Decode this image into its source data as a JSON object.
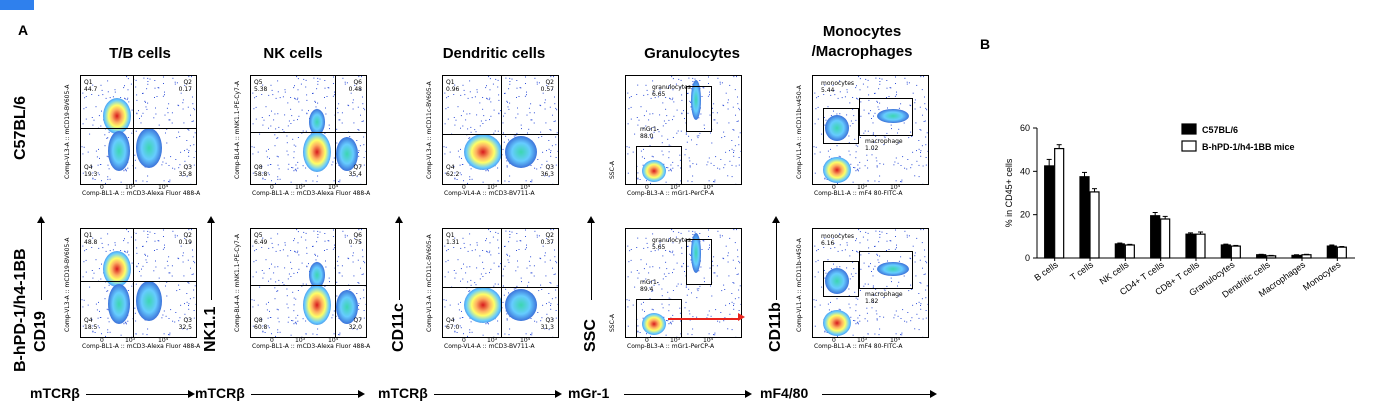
{
  "panels": {
    "a": "A",
    "b": "B"
  },
  "columns": [
    "T/B cells",
    "NK cells",
    "Dendritic cells",
    "Granulocytes",
    "Monocytes\n/Macrophages"
  ],
  "rows": [
    "C57BL/6",
    "B-hPD-1/h4-1BB"
  ],
  "y_markers": [
    "CD19",
    "NK1.1",
    "CD11c",
    "SSC",
    "CD11b"
  ],
  "x_markers": [
    "mTCRβ",
    "mTCRβ",
    "mTCRβ",
    "mGr-1",
    "mF4/80"
  ],
  "plots": [
    {
      "xaxis": "Comp-BL1-A :: mCD3-Alexa Fluor   488-A",
      "yaxis": "Comp-VL3-A :: mCD19-BV605-A",
      "rows": [
        {
          "quads": [
            "Q1\n44.7",
            "Q2\n0.17",
            "Q4\n19.3",
            "Q3\n35.8"
          ]
        },
        {
          "quads": [
            "Q1\n48.8",
            "Q2\n0.19",
            "Q4\n18.5",
            "Q3\n32.5"
          ]
        }
      ]
    },
    {
      "xaxis": "Comp-BL1-A :: mCD3-Alexa Fluor   488-A",
      "yaxis": "Comp-BL4-A :: mNK1.1-PE-Cy7-A",
      "rows": [
        {
          "quads": [
            "Q5\n5.38",
            "Q6\n0.48",
            "Q8\n58.8",
            "Q7\n35.4"
          ]
        },
        {
          "quads": [
            "Q5\n6.49",
            "Q6\n0.75",
            "Q8\n60.8",
            "Q7\n32.0"
          ]
        }
      ]
    },
    {
      "xaxis": "Comp-VL4-A :: mCD3-BV711-A",
      "yaxis": "Comp-VL3-A :: mCD11c-BV605-A",
      "rows": [
        {
          "quads": [
            "Q1\n0.96",
            "Q2\n0.57",
            "Q4\n62.2",
            "Q3\n36.3"
          ]
        },
        {
          "quads": [
            "Q1\n1.31",
            "Q2\n0.37",
            "Q4\n67.0",
            "Q3\n31.3"
          ]
        }
      ]
    },
    {
      "xaxis": "Comp-BL3-A :: mGr1-PerCP-A",
      "yaxis": "SSC-A",
      "rows": [
        {
          "quads": [
            "granulocytes\n6.65",
            "mGr1-\n88.0"
          ]
        },
        {
          "quads": [
            "granulocytes\n5.65",
            "mGr1-\n89.4"
          ]
        }
      ]
    },
    {
      "xaxis": "Comp-BL1-A :: mF4 80-FITC-A",
      "yaxis": "Comp-VL1-A :: mCD11b-v450-A",
      "rows": [
        {
          "quads": [
            "monocytes\n5.44",
            "macrophage\n1.02"
          ]
        },
        {
          "quads": [
            "monocytes\n6.16",
            "macrophage\n1.82"
          ]
        }
      ]
    }
  ],
  "colors": {
    "c57": "#000000",
    "tg": "#ffffff",
    "highlight": "#e8231c"
  },
  "chart_data": {
    "type": "bar",
    "ylabel": "% in CD45+ cells",
    "ylim": [
      0,
      60
    ],
    "yticks": [
      "0",
      "20",
      "40",
      "60"
    ],
    "categories": [
      "B cells",
      "T cells",
      "NK cells",
      "CD4+ T cells",
      "CD8+ T cells",
      "Granulocytes",
      "Dendritic cells",
      "Macrophages",
      "Monocytes"
    ],
    "series": [
      {
        "name": "C57BL/6",
        "values": [
          42.5,
          37.5,
          6.5,
          19.5,
          11.0,
          6.0,
          1.5,
          1.2,
          5.5
        ],
        "errors": [
          3.0,
          2.0,
          0.4,
          1.5,
          0.6,
          0.4,
          0.2,
          0.3,
          0.5
        ]
      },
      {
        "name": "B-hPD-1/h4-1BB mice",
        "values": [
          50.5,
          30.5,
          6.0,
          18.0,
          11.0,
          5.5,
          1.0,
          1.5,
          5.0
        ],
        "errors": [
          1.8,
          1.5,
          0.3,
          1.2,
          1.0,
          0.3,
          0.2,
          0.2,
          0.3
        ]
      }
    ],
    "legend": "top-right",
    "grid": false
  }
}
